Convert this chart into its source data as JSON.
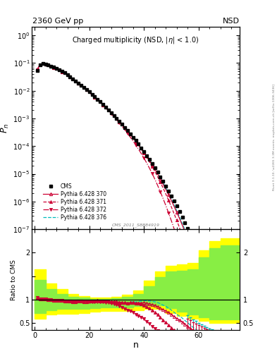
{
  "title_top": "2360 GeV pp",
  "title_right": "NSD",
  "main_title": "Charged multiplicity (NSD, |#eta| < 1.0)",
  "xlabel": "n",
  "ylabel_main": "P_n",
  "ylabel_ratio": "Ratio to CMS",
  "watermark": "CMS_2011_S8884919",
  "right_label": "Rivet 3.1.10, \\u2265 3.3M events  mcplots.cern.ch [arXiv:1306.3436]",
  "cms_x": [
    1,
    2,
    3,
    4,
    5,
    6,
    7,
    8,
    9,
    10,
    11,
    12,
    13,
    14,
    15,
    16,
    17,
    18,
    19,
    20,
    21,
    22,
    23,
    24,
    25,
    26,
    27,
    28,
    29,
    30,
    31,
    32,
    33,
    34,
    35,
    36,
    37,
    38,
    39,
    40,
    41,
    42,
    43,
    44,
    45,
    46,
    47,
    48,
    49,
    50,
    51,
    52,
    53,
    54,
    55,
    56,
    57,
    58,
    59,
    60,
    61,
    62,
    63,
    64,
    65,
    66,
    67,
    68,
    69,
    70,
    71,
    72
  ],
  "cms_y": [
    0.055,
    0.088,
    0.095,
    0.09,
    0.085,
    0.078,
    0.071,
    0.064,
    0.057,
    0.05,
    0.044,
    0.038,
    0.032,
    0.027,
    0.023,
    0.019,
    0.016,
    0.0135,
    0.0112,
    0.0092,
    0.0075,
    0.0061,
    0.0049,
    0.004,
    0.0032,
    0.00255,
    0.00203,
    0.00162,
    0.00128,
    0.00101,
    0.00079,
    0.00062,
    0.00048,
    0.00037,
    0.00028,
    0.00021,
    0.00016,
    0.000118,
    8.7e-05,
    6.3e-05,
    4.6e-05,
    3.3e-05,
    2.35e-05,
    1.65e-05,
    1.15e-05,
    7.9e-06,
    5.4e-06,
    3.6e-06,
    2.4e-06,
    1.6e-06,
    1.05e-06,
    6.8e-07,
    4.3e-07,
    2.7e-07,
    1.7e-07,
    1.05e-07,
    6.5e-08,
    4e-08,
    2.4e-08,
    1.45e-08,
    8.6e-09,
    5.1e-09,
    3e-09,
    1.75e-09,
    1.02e-09,
    5.9e-10,
    3.4e-10,
    1.95e-10,
    1.12e-10,
    6.3e-11,
    3.6e-11,
    2e-11
  ],
  "py370_x": [
    1,
    2,
    3,
    4,
    5,
    6,
    7,
    8,
    9,
    10,
    11,
    12,
    13,
    14,
    15,
    16,
    17,
    18,
    19,
    20,
    21,
    22,
    23,
    24,
    25,
    26,
    27,
    28,
    29,
    30,
    31,
    32,
    33,
    34,
    35,
    36,
    37,
    38,
    39,
    40,
    41,
    42,
    43,
    44,
    45,
    46,
    47,
    48,
    49,
    50,
    51,
    52,
    53,
    54,
    55,
    56,
    57,
    58,
    59,
    60,
    61,
    62,
    63,
    64,
    65,
    66,
    67,
    68,
    69,
    70,
    71,
    72
  ],
  "py370_y": [
    0.058,
    0.09,
    0.096,
    0.091,
    0.085,
    0.078,
    0.07,
    0.063,
    0.056,
    0.049,
    0.043,
    0.037,
    0.031,
    0.026,
    0.022,
    0.0185,
    0.0155,
    0.013,
    0.0108,
    0.0089,
    0.0073,
    0.00595,
    0.0048,
    0.0039,
    0.0031,
    0.00248,
    0.00197,
    0.00156,
    0.00123,
    0.00096,
    0.00075,
    0.00058,
    0.00045,
    0.000345,
    0.000262,
    0.000197,
    0.000148,
    0.00011,
    8.1e-05,
    5.9e-05,
    4.25e-05,
    3e-05,
    2.1e-05,
    1.45e-05,
    9.8e-06,
    6.5e-06,
    4.25e-06,
    2.75e-06,
    1.75e-06,
    1.1e-06,
    6.8e-07,
    4.1e-07,
    2.45e-07,
    1.43e-07,
    8.2e-08,
    4.6e-08,
    2.55e-08,
    1.4e-08,
    7.4e-09,
    3.9e-09,
    2e-09,
    1.02e-09,
    5.1e-10,
    2.5e-10,
    1.22e-10,
    5.8e-11,
    2.7e-11,
    1.25e-11,
    5.6e-12,
    2.5e-12,
    1.1e-12,
    4.6e-13
  ],
  "py371_x": [
    1,
    2,
    3,
    4,
    5,
    6,
    7,
    8,
    9,
    10,
    11,
    12,
    13,
    14,
    15,
    16,
    17,
    18,
    19,
    20,
    21,
    22,
    23,
    24,
    25,
    26,
    27,
    28,
    29,
    30,
    31,
    32,
    33,
    34,
    35,
    36,
    37,
    38,
    39,
    40,
    41,
    42,
    43,
    44,
    45,
    46,
    47,
    48,
    49,
    50,
    51,
    52,
    53,
    54,
    55,
    56,
    57,
    58,
    59,
    60,
    61,
    62,
    63,
    64,
    65,
    66,
    67,
    68,
    69,
    70,
    71,
    72
  ],
  "py371_y": [
    0.058,
    0.09,
    0.096,
    0.091,
    0.085,
    0.078,
    0.07,
    0.063,
    0.056,
    0.049,
    0.043,
    0.037,
    0.031,
    0.026,
    0.022,
    0.0185,
    0.0155,
    0.013,
    0.0108,
    0.0089,
    0.0073,
    0.00595,
    0.0048,
    0.0039,
    0.0031,
    0.00248,
    0.00197,
    0.00156,
    0.00123,
    0.00096,
    0.00075,
    0.00058,
    0.00045,
    0.000345,
    0.000262,
    0.000197,
    0.000148,
    0.000109,
    7.9e-05,
    5.6e-05,
    3.9e-05,
    2.7e-05,
    1.83e-05,
    1.22e-05,
    7.9e-06,
    5e-06,
    3.1e-06,
    1.87e-06,
    1.12e-06,
    6.5e-07,
    3.7e-07,
    2.1e-07,
    1.15e-07,
    6.1e-08,
    3.2e-08,
    1.65e-08,
    8.3e-09,
    4.1e-09,
    1.98e-09,
    9.5e-10,
    4.4e-10,
    2.02e-10,
    9.2e-11,
    4.1e-11,
    1.8e-11,
    7.7e-12,
    3.2e-12,
    1.32e-12,
    5.3e-13,
    2.1e-13,
    8.2e-14,
    3.1e-14
  ],
  "py372_x": [
    1,
    2,
    3,
    4,
    5,
    6,
    7,
    8,
    9,
    10,
    11,
    12,
    13,
    14,
    15,
    16,
    17,
    18,
    19,
    20,
    21,
    22,
    23,
    24,
    25,
    26,
    27,
    28,
    29,
    30,
    31,
    32,
    33,
    34,
    35,
    36,
    37,
    38,
    39,
    40,
    41,
    42,
    43,
    44,
    45,
    46,
    47,
    48,
    49,
    50,
    51,
    52,
    53,
    54,
    55,
    56,
    57,
    58,
    59,
    60,
    61,
    62,
    63,
    64,
    65,
    66,
    67,
    68,
    69,
    70,
    71,
    72
  ],
  "py372_y": [
    0.058,
    0.09,
    0.096,
    0.091,
    0.085,
    0.078,
    0.07,
    0.063,
    0.056,
    0.049,
    0.043,
    0.037,
    0.031,
    0.026,
    0.022,
    0.0185,
    0.0155,
    0.013,
    0.0108,
    0.00885,
    0.0072,
    0.00585,
    0.00472,
    0.0038,
    0.00304,
    0.00242,
    0.00191,
    0.0015,
    0.00117,
    0.0009,
    0.00069,
    0.00052,
    0.00039,
    0.000288,
    0.000212,
    0.000154,
    0.00011,
    7.8e-05,
    5.45e-05,
    3.72e-05,
    2.48e-05,
    1.62e-05,
    1.03e-05,
    6.4e-06,
    3.85e-06,
    2.26e-06,
    1.29e-06,
    7.2e-07,
    3.9e-07,
    2.07e-07,
    1.07e-07,
    5.4e-08,
    2.67e-08,
    1.29e-08,
    6.1e-09,
    2.82e-09,
    1.27e-09,
    5.6e-10,
    2.42e-10,
    1.02e-10,
    4.2e-11,
    1.7e-11,
    6.7e-12,
    2.57e-12,
    9.7e-13,
    3.6e-13,
    1.31e-13,
    4.7e-14,
    1.67e-14,
    5.8e-15,
    2e-15,
    6.8e-16
  ],
  "py376_x": [
    1,
    2,
    3,
    4,
    5,
    6,
    7,
    8,
    9,
    10,
    11,
    12,
    13,
    14,
    15,
    16,
    17,
    18,
    19,
    20,
    21,
    22,
    23,
    24,
    25,
    26,
    27,
    28,
    29,
    30,
    31,
    32,
    33,
    34,
    35,
    36,
    37,
    38,
    39,
    40,
    41,
    42,
    43,
    44,
    45,
    46,
    47,
    48,
    49,
    50,
    51,
    52,
    53,
    54,
    55,
    56,
    57,
    58,
    59,
    60,
    61,
    62,
    63,
    64,
    65,
    66,
    67,
    68,
    69,
    70,
    71,
    72
  ],
  "py376_y": [
    0.058,
    0.09,
    0.096,
    0.091,
    0.085,
    0.078,
    0.07,
    0.063,
    0.056,
    0.049,
    0.043,
    0.037,
    0.031,
    0.026,
    0.022,
    0.0185,
    0.0155,
    0.013,
    0.0108,
    0.0089,
    0.0073,
    0.00595,
    0.0048,
    0.0039,
    0.0031,
    0.00248,
    0.00197,
    0.00156,
    0.00123,
    0.00096,
    0.00075,
    0.00058,
    0.00045,
    0.000345,
    0.000265,
    0.000202,
    0.000152,
    0.000114,
    8.45e-05,
    6.2e-05,
    4.5e-05,
    3.22e-05,
    2.27e-05,
    1.58e-05,
    1.08e-05,
    7.25e-06,
    4.78e-06,
    3.1e-06,
    1.98e-06,
    1.25e-06,
    7.7e-07,
    4.7e-07,
    2.8e-07,
    1.65e-07,
    9.5e-08,
    5.4e-08,
    3e-08,
    1.65e-08,
    8.9e-09,
    4.75e-09,
    2.5e-09,
    1.3e-09,
    6.6e-10,
    3.3e-10,
    1.65e-10,
    8.1e-11,
    3.9e-11,
    1.85e-11,
    8.6e-12,
    3.95e-12,
    1.8e-12,
    8e-13
  ],
  "color_370": "#cc0033",
  "color_371": "#cc0033",
  "color_372": "#cc0033",
  "color_376": "#00bbbb",
  "ylim_main": [
    1e-07,
    2.0
  ],
  "xlim": [
    -1,
    75
  ],
  "ylim_ratio": [
    0.35,
    2.5
  ],
  "band_x_edges": [
    0,
    4,
    8,
    12,
    16,
    20,
    24,
    28,
    32,
    36,
    40,
    44,
    48,
    52,
    56,
    60,
    64,
    68,
    72,
    76
  ],
  "band_yellow_lo": [
    0.6,
    0.68,
    0.7,
    0.7,
    0.72,
    0.74,
    0.76,
    0.76,
    0.76,
    0.78,
    0.8,
    0.8,
    0.72,
    0.66,
    0.6,
    0.55,
    0.5,
    0.5,
    0.5
  ],
  "band_yellow_hi": [
    1.65,
    1.35,
    1.22,
    1.12,
    1.08,
    1.05,
    1.05,
    1.06,
    1.1,
    1.2,
    1.4,
    1.6,
    1.72,
    1.75,
    1.78,
    2.05,
    2.25,
    2.3,
    2.3
  ],
  "band_green_lo": [
    0.72,
    0.78,
    0.8,
    0.8,
    0.81,
    0.82,
    0.83,
    0.83,
    0.84,
    0.86,
    0.88,
    0.88,
    0.82,
    0.75,
    0.68,
    0.62,
    0.58,
    0.58,
    0.58
  ],
  "band_green_hi": [
    1.42,
    1.22,
    1.12,
    1.06,
    1.04,
    1.02,
    1.02,
    1.03,
    1.06,
    1.12,
    1.28,
    1.48,
    1.6,
    1.62,
    1.65,
    1.9,
    2.1,
    2.15,
    2.15
  ]
}
